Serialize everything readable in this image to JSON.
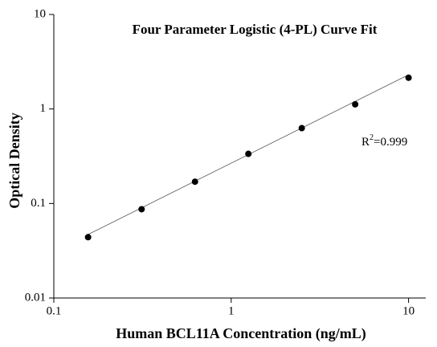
{
  "chart_data": {
    "type": "scatter",
    "title": "Four Parameter Logistic (4-PL) Curve Fit",
    "x_label": "Human BCL11A Concentration (ng/mL)",
    "y_label": "Optical Density",
    "annotation": {
      "base": "R",
      "sup": "2",
      "rest": "=0.999"
    },
    "x": [
      0.156,
      0.3125,
      0.625,
      1.25,
      2.5,
      5,
      10
    ],
    "values": [
      0.044,
      0.087,
      0.17,
      0.335,
      0.627,
      1.12,
      2.14
    ],
    "color": "#000000",
    "fit_line": {
      "x": [
        0.156,
        10
      ],
      "values": [
        0.047,
        2.3
      ]
    },
    "xlim": [
      0.1,
      12.5
    ],
    "ylim": [
      0.01,
      10
    ],
    "xticks": [
      0.1,
      1,
      10
    ],
    "yticks": [
      0.01,
      0.1,
      1,
      10
    ],
    "log_x": true,
    "log_y": true
  }
}
